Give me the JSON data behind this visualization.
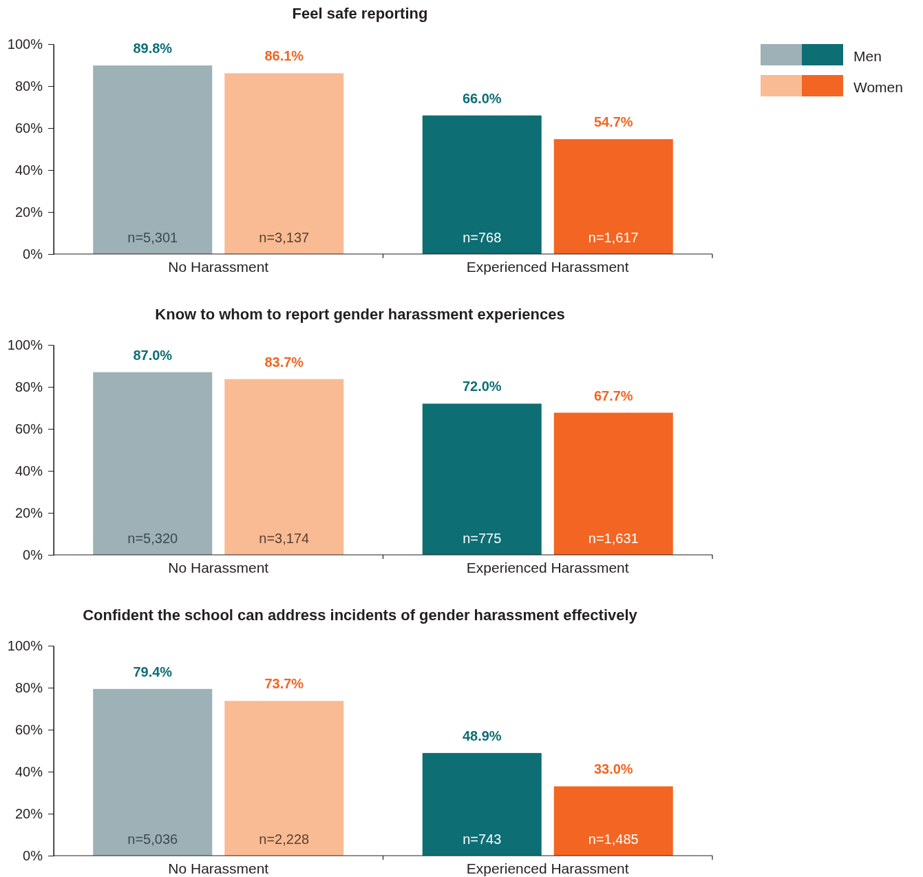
{
  "chart_data": [
    {
      "type": "bar",
      "title": "Feel safe reporting",
      "categories": [
        "No Harassment",
        "Experienced Harassment"
      ],
      "ylim": [
        0,
        100
      ],
      "yticks": [
        {
          "value": 0,
          "label": "0%"
        },
        {
          "value": 20,
          "label": "20%"
        },
        {
          "value": 40,
          "label": "40%"
        },
        {
          "value": 60,
          "label": "60%"
        },
        {
          "value": 80,
          "label": "80%"
        },
        {
          "value": 100,
          "label": "100%"
        }
      ],
      "legend": "top right",
      "series": [
        {
          "name": "Men",
          "colors": [
            "#9db1b7",
            "#0d6e74"
          ],
          "values": [
            89.8,
            66.0
          ],
          "value_labels": [
            "89.8%",
            "66.0%"
          ]
        },
        {
          "name": "Women",
          "colors": [
            "#f9bb94",
            "#f26522"
          ],
          "values": [
            86.1,
            54.7
          ],
          "value_labels": [
            "86.1%",
            "54.7%"
          ]
        }
      ],
      "annotations": [
        "n=5,301",
        "n=3,137",
        "n=768",
        "n=1,617"
      ]
    },
    {
      "type": "bar",
      "title": "Know to whom to report gender harassment experiences",
      "categories": [
        "No Harassment",
        "Experienced Harassment"
      ],
      "ylim": [
        0,
        100
      ],
      "yticks": [
        {
          "value": 0,
          "label": "0%"
        },
        {
          "value": 20,
          "label": "20%"
        },
        {
          "value": 40,
          "label": "40%"
        },
        {
          "value": 60,
          "label": "60%"
        },
        {
          "value": 80,
          "label": "80%"
        },
        {
          "value": 100,
          "label": "100%"
        }
      ],
      "series": [
        {
          "colors": [
            "#9db1b7",
            "#0d6e74"
          ],
          "values": [
            87.0,
            72.0
          ],
          "value_labels": [
            "87.0%",
            "72.0%"
          ]
        },
        {
          "colors": [
            "#f9bb94",
            "#f26522"
          ],
          "values": [
            83.7,
            67.7
          ],
          "value_labels": [
            "83.7%",
            "67.7%"
          ]
        }
      ],
      "annotations": [
        "n=5,320",
        "n=3,174",
        "n=775",
        "n=1,631"
      ]
    },
    {
      "type": "bar",
      "title": "Confident the school can address incidents of gender harassment effectively",
      "categories": [
        "No Harassment",
        "Experienced Harassment"
      ],
      "ylim": [
        0,
        100
      ],
      "yticks": [
        {
          "value": 0,
          "label": "0%"
        },
        {
          "value": 20,
          "label": "20%"
        },
        {
          "value": 40,
          "label": "40%"
        },
        {
          "value": 60,
          "label": "60%"
        },
        {
          "value": 80,
          "label": "80%"
        },
        {
          "value": 100,
          "label": "100%"
        }
      ],
      "series": [
        {
          "colors": [
            "#9db1b7",
            "#0d6e74"
          ],
          "values": [
            79.4,
            48.9
          ],
          "value_labels": [
            "79.4%",
            "48.9%"
          ]
        },
        {
          "colors": [
            "#f9bb94",
            "#f26522"
          ],
          "values": [
            73.7,
            33.0
          ],
          "value_labels": [
            "73.7%",
            "33.0%"
          ]
        }
      ],
      "annotations": [
        "n=5,036",
        "n=2,228",
        "n=743",
        "n=1,485"
      ]
    }
  ]
}
